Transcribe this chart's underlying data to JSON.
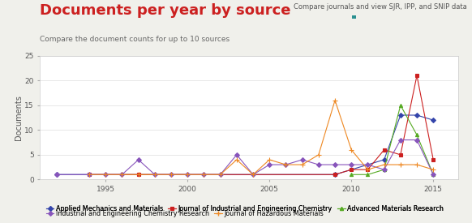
{
  "title": "Documents per year by source",
  "subtitle": "Compare the document counts for up to 10 sources",
  "top_right_text": "Compare journals and view SJR, IPP, and SNIP data",
  "top_right_icon_color": "#2a9090",
  "ylabel": "Documents",
  "xlim": [
    1991,
    2016.5
  ],
  "ylim": [
    0,
    25
  ],
  "yticks": [
    0,
    5,
    10,
    15,
    20,
    25
  ],
  "xticks": [
    1995,
    2000,
    2005,
    2010,
    2015
  ],
  "background_color": "#f0f0eb",
  "plot_bg_color": "#ffffff",
  "title_color": "#cc2020",
  "subtitle_color": "#666666",
  "series": [
    {
      "label": "Applied Mechanics and Materials",
      "color": "#3344aa",
      "marker": "D",
      "markersize": 3,
      "years": [
        1992,
        2009,
        2012,
        2013,
        2014,
        2015
      ],
      "values": [
        1,
        1,
        4,
        13,
        13,
        12
      ]
    },
    {
      "label": "Journal of Industrial and Engineering Chemistry",
      "color": "#cc2020",
      "marker": "s",
      "markersize": 3,
      "years": [
        1994,
        1997,
        2009,
        2010,
        2011,
        2012,
        2013,
        2014,
        2015
      ],
      "values": [
        1,
        1,
        1,
        2,
        2,
        6,
        5,
        21,
        4
      ]
    },
    {
      "label": "Advanced Materials Research",
      "color": "#55aa22",
      "marker": "^",
      "markersize": 3,
      "years": [
        2010,
        2011,
        2012,
        2013,
        2014,
        2015
      ],
      "values": [
        1,
        1,
        2,
        15,
        9,
        1
      ]
    },
    {
      "label": "Industrial and Engineering Chemistry Research",
      "color": "#8855bb",
      "marker": "D",
      "markersize": 3,
      "years": [
        1992,
        1994,
        1995,
        1996,
        1997,
        1998,
        1999,
        2000,
        2001,
        2002,
        2003,
        2004,
        2005,
        2006,
        2007,
        2008,
        2009,
        2010,
        2011,
        2012,
        2013,
        2014,
        2015
      ],
      "values": [
        1,
        1,
        1,
        1,
        4,
        1,
        1,
        1,
        1,
        1,
        5,
        1,
        3,
        3,
        4,
        3,
        3,
        3,
        3,
        2,
        8,
        8,
        1
      ]
    },
    {
      "label": "Journal of Hazardous Materials",
      "color": "#ee8822",
      "marker": "+",
      "markersize": 4,
      "years": [
        1994,
        1995,
        1996,
        1997,
        1998,
        1999,
        2000,
        2001,
        2002,
        2003,
        2004,
        2005,
        2006,
        2007,
        2008,
        2009,
        2010,
        2011,
        2012,
        2013,
        2014,
        2015
      ],
      "values": [
        1,
        1,
        1,
        1,
        1,
        1,
        1,
        1,
        1,
        4,
        1,
        4,
        3,
        3,
        5,
        16,
        6,
        2,
        3,
        3,
        3,
        2
      ]
    }
  ],
  "grid_color": "#dddddd",
  "grid_alpha": 0.8,
  "title_fontsize": 13,
  "subtitle_fontsize": 6.5,
  "top_right_fontsize": 6,
  "ylabel_fontsize": 7,
  "tick_fontsize": 6.5
}
